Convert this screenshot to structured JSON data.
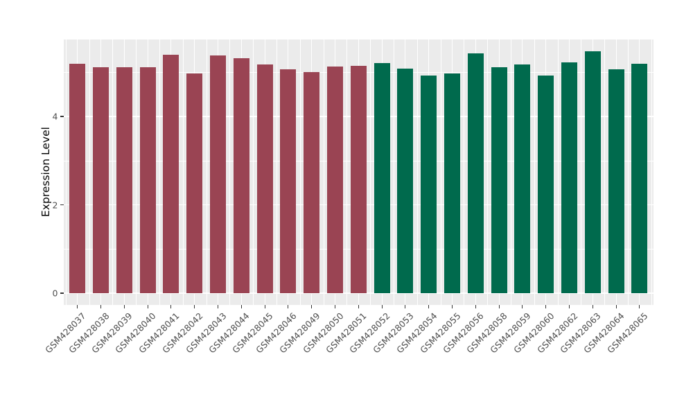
{
  "chart_data": {
    "type": "bar",
    "title": "",
    "xlabel": "",
    "ylabel": "Expression Level",
    "ylim": [
      0,
      5.74
    ],
    "grid": true,
    "legend_position": "none",
    "panel_background": "#EBEBEB",
    "gridline_color": "#FFFFFF",
    "axis_text_color": "#4D4D4D",
    "tick_mark_color": "#333333",
    "yticks": [
      {
        "value": 0,
        "label": "0"
      },
      {
        "value": 2,
        "label": "2"
      },
      {
        "value": 4,
        "label": "4"
      }
    ],
    "minor_gridline_values": [
      1,
      3,
      5
    ],
    "group_colors": {
      "group1": "#9A4453",
      "group2": "#006A4D"
    },
    "categories": [
      "GSM428037",
      "GSM428038",
      "GSM428039",
      "GSM428040",
      "GSM428041",
      "GSM428042",
      "GSM428043",
      "GSM428044",
      "GSM428045",
      "GSM428046",
      "GSM428049",
      "GSM428050",
      "GSM428051",
      "GSM428052",
      "GSM428053",
      "GSM428054",
      "GSM428055",
      "GSM428056",
      "GSM428058",
      "GSM428059",
      "GSM428060",
      "GSM428062",
      "GSM428063",
      "GSM428064",
      "GSM428065"
    ],
    "bars": [
      {
        "label": "GSM428037",
        "value": 5.2,
        "group": "group1"
      },
      {
        "label": "GSM428038",
        "value": 5.12,
        "group": "group1"
      },
      {
        "label": "GSM428039",
        "value": 5.12,
        "group": "group1"
      },
      {
        "label": "GSM428040",
        "value": 5.12,
        "group": "group1"
      },
      {
        "label": "GSM428041",
        "value": 5.4,
        "group": "group1"
      },
      {
        "label": "GSM428042",
        "value": 4.98,
        "group": "group1"
      },
      {
        "label": "GSM428043",
        "value": 5.38,
        "group": "group1"
      },
      {
        "label": "GSM428044",
        "value": 5.32,
        "group": "group1"
      },
      {
        "label": "GSM428045",
        "value": 5.17,
        "group": "group1"
      },
      {
        "label": "GSM428046",
        "value": 5.07,
        "group": "group1"
      },
      {
        "label": "GSM428049",
        "value": 5.01,
        "group": "group1"
      },
      {
        "label": "GSM428050",
        "value": 5.13,
        "group": "group1"
      },
      {
        "label": "GSM428051",
        "value": 5.15,
        "group": "group1"
      },
      {
        "label": "GSM428052",
        "value": 5.21,
        "group": "group2"
      },
      {
        "label": "GSM428053",
        "value": 5.08,
        "group": "group2"
      },
      {
        "label": "GSM428054",
        "value": 4.93,
        "group": "group2"
      },
      {
        "label": "GSM428055",
        "value": 4.97,
        "group": "group2"
      },
      {
        "label": "GSM428056",
        "value": 5.43,
        "group": "group2"
      },
      {
        "label": "GSM428058",
        "value": 5.11,
        "group": "group2"
      },
      {
        "label": "GSM428059",
        "value": 5.17,
        "group": "group2"
      },
      {
        "label": "GSM428060",
        "value": 4.93,
        "group": "group2"
      },
      {
        "label": "GSM428062",
        "value": 5.23,
        "group": "group2"
      },
      {
        "label": "GSM428063",
        "value": 5.47,
        "group": "group2"
      },
      {
        "label": "GSM428064",
        "value": 5.06,
        "group": "group2"
      },
      {
        "label": "GSM428065",
        "value": 5.19,
        "group": "group2"
      }
    ]
  }
}
